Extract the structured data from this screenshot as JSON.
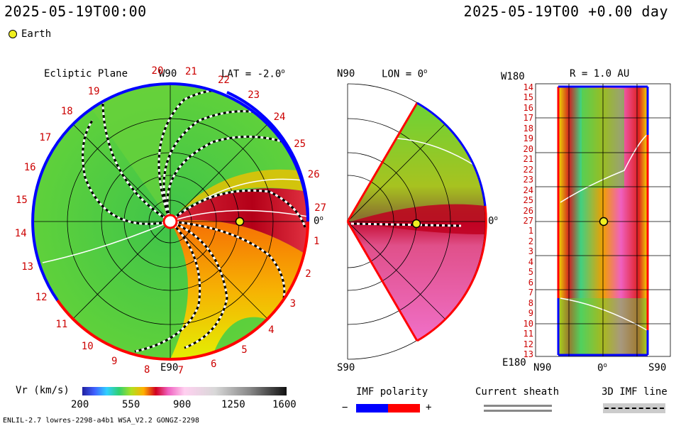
{
  "header": {
    "timestamp_left": "2025-05-19T00:00",
    "timestamp_right": "2025-05-19T00 +0.00 day"
  },
  "legend": {
    "earth_label": "Earth",
    "earth_color": "#f0f020"
  },
  "ecliptic": {
    "title": "Ecliptic Plane",
    "lat_label": "LAT = -2.0",
    "top_label": "W90",
    "bottom_label": "E90",
    "right_label": "0",
    "rotation_labels": [
      "20",
      "21",
      "22",
      "23",
      "24",
      "25",
      "26",
      "27",
      "1",
      "2",
      "3",
      "4",
      "5",
      "6",
      "7",
      "8",
      "9",
      "10",
      "11",
      "12",
      "13",
      "14",
      "15",
      "16",
      "17",
      "18",
      "19"
    ]
  },
  "meridional": {
    "lon_label": "LON = 0",
    "top_label": "N90",
    "bottom_label": "S90",
    "right_label": "0"
  },
  "radial": {
    "r_label": "R = 1.0 AU",
    "top_label": "W180",
    "bottom_label": "E180",
    "x_labels": [
      "N90",
      "0",
      "S90"
    ],
    "y_labels": [
      "14",
      "15",
      "16",
      "17",
      "18",
      "19",
      "20",
      "21",
      "22",
      "23",
      "24",
      "25",
      "26",
      "27",
      "1",
      "2",
      "3",
      "4",
      "5",
      "6",
      "7",
      "8",
      "9",
      "10",
      "11",
      "12",
      "13"
    ]
  },
  "colorbar": {
    "title": "Vr (km/s)",
    "ticks": [
      "200",
      "550",
      "900",
      "1250",
      "1600"
    ]
  },
  "imf": {
    "title": "IMF polarity",
    "minus": "−",
    "plus": "+",
    "neg_color": "#0000ff",
    "pos_color": "#ff0000"
  },
  "sheath": {
    "title": "Current sheath"
  },
  "imf3d": {
    "title": "3D IMF line"
  },
  "footer": {
    "model_info": "ENLIL-2.7 lowres-2298-a4b1 WSA_V2.2 GONGZ-2298"
  }
}
